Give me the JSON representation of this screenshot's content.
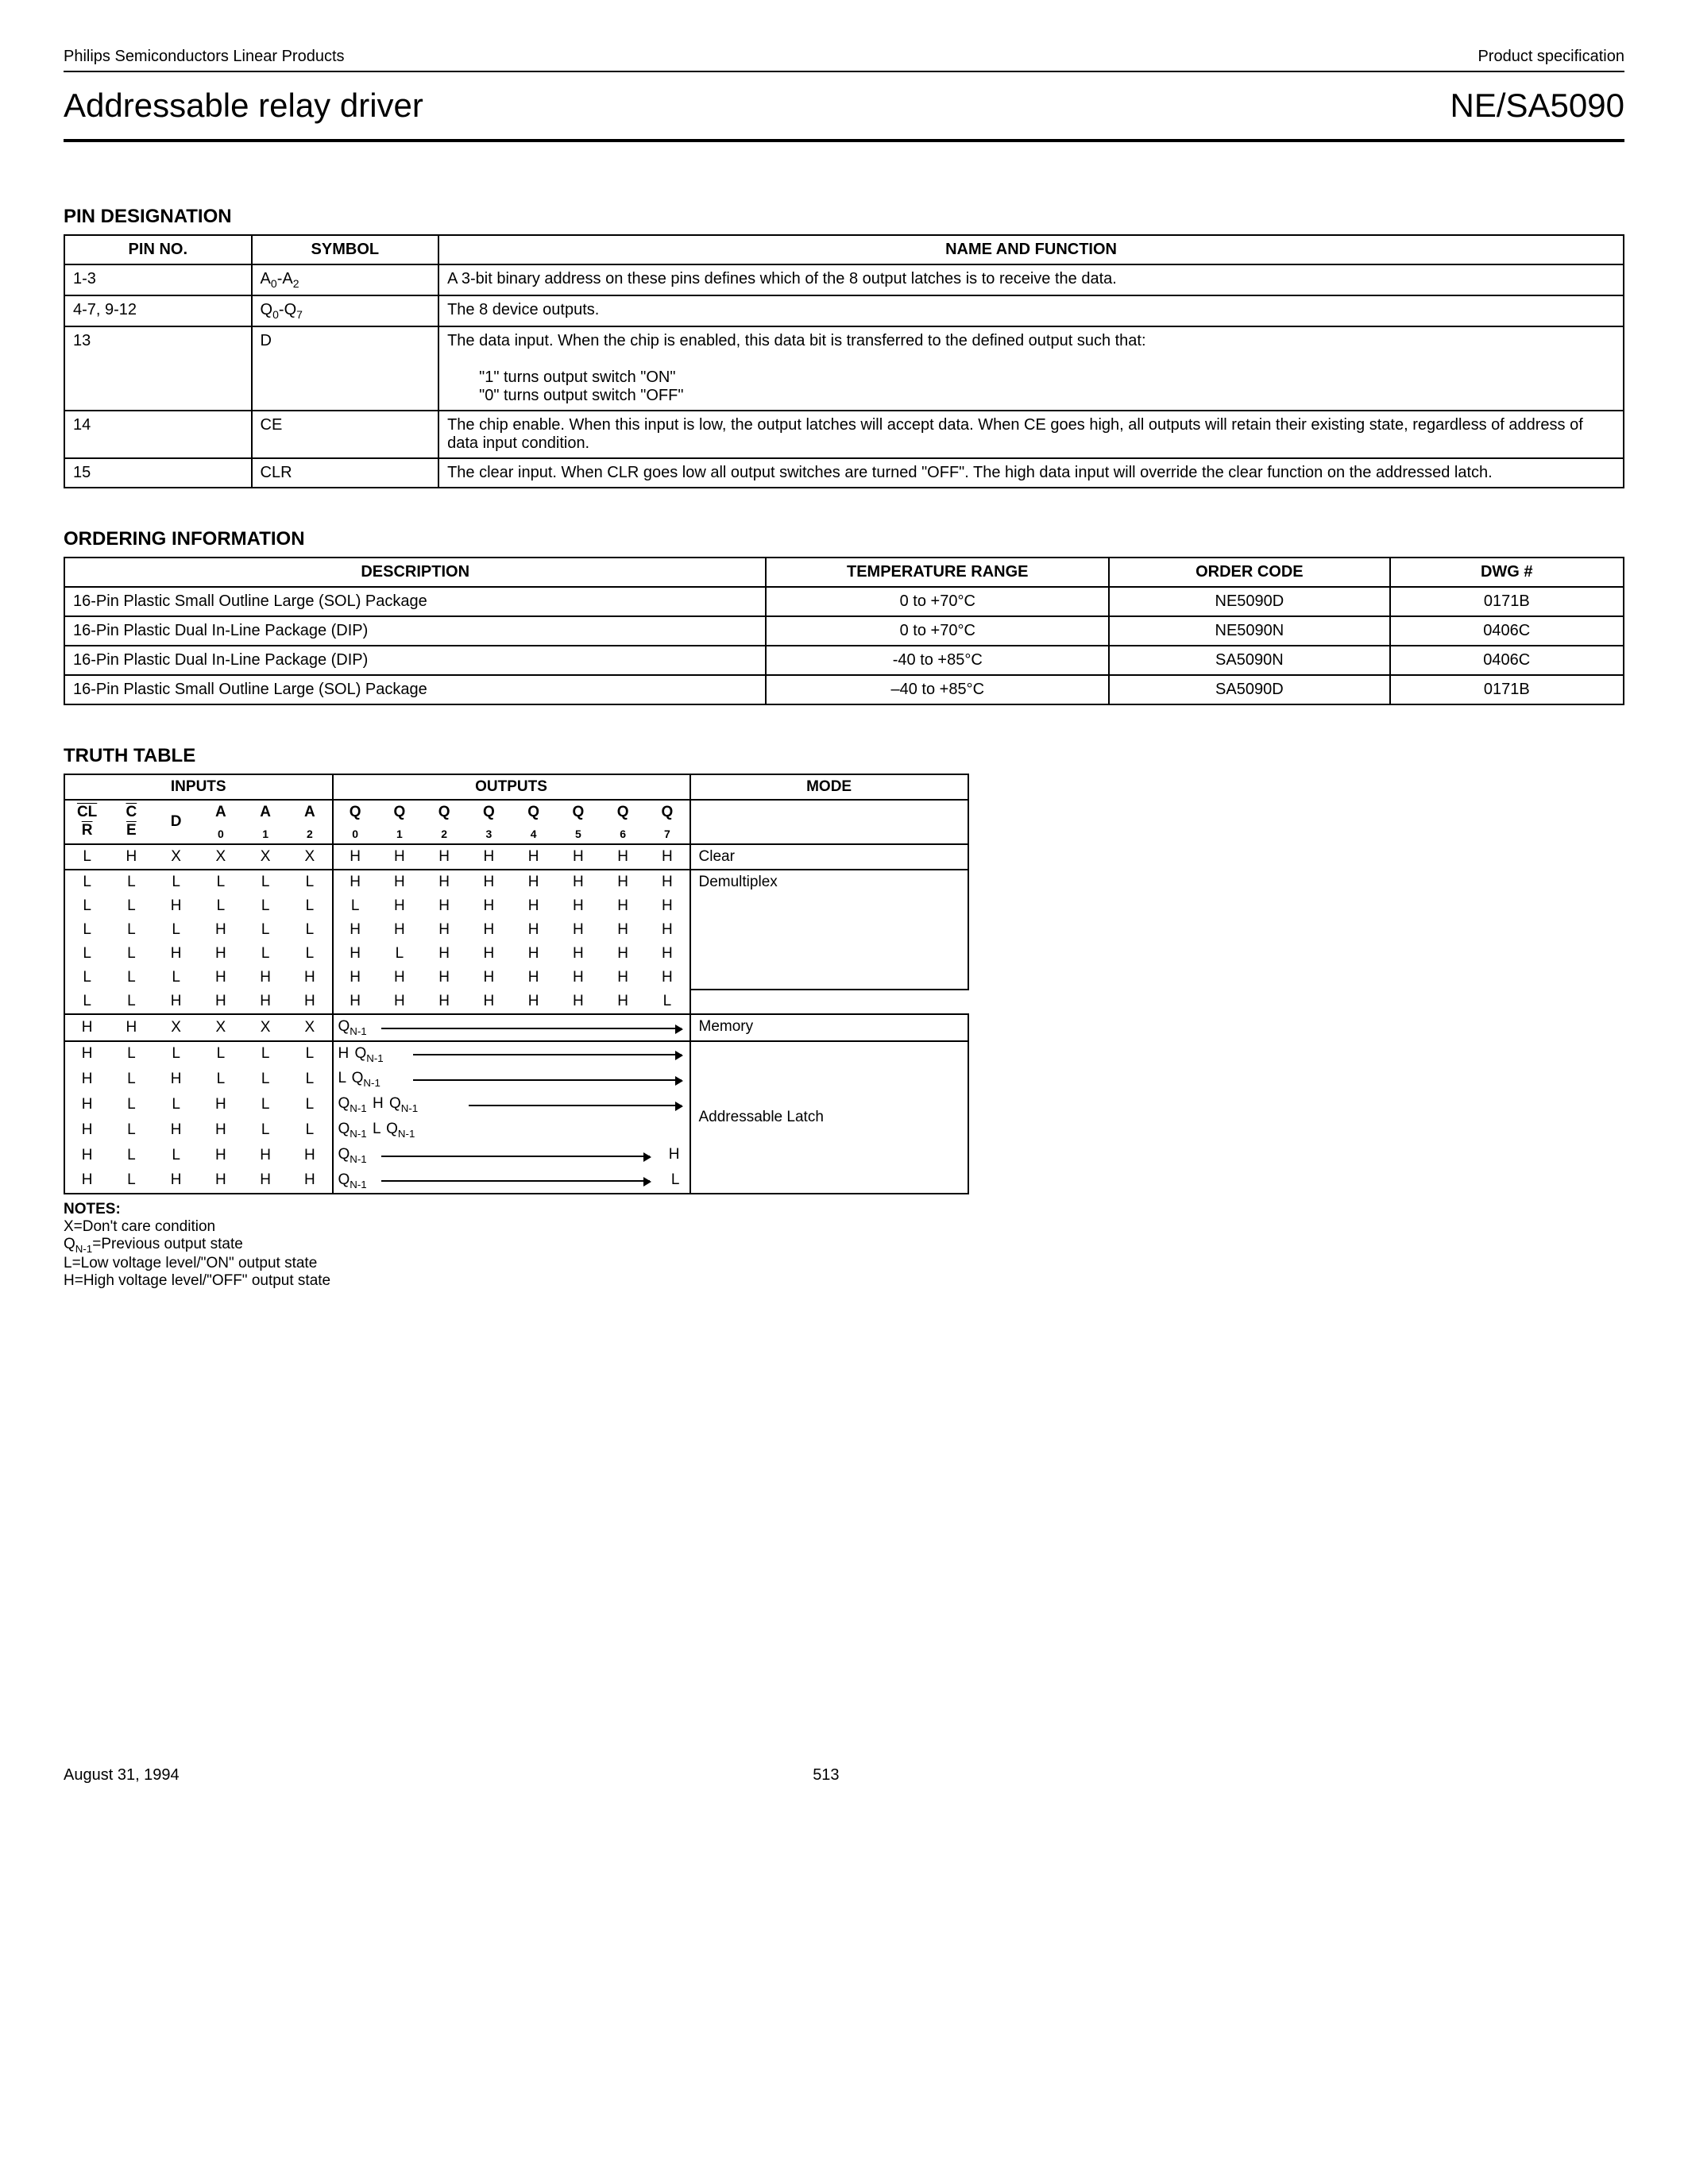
{
  "header": {
    "company_line": "Philips Semiconductors Linear Products",
    "spec_line": "Product specification",
    "title": "Addressable relay driver",
    "part": "NE/SA5090"
  },
  "pin_designation": {
    "heading": "PIN DESIGNATION",
    "columns": [
      "PIN NO.",
      "SYMBOL",
      "NAME AND FUNCTION"
    ],
    "rows": [
      {
        "pin": "1-3",
        "symbol_html": "A<sub>0</sub>-A<sub>2</sub>",
        "func": "A 3-bit binary address on these pins defines which of the 8 output latches is to receive the data."
      },
      {
        "pin": "4-7, 9-12",
        "symbol_html": "Q<sub>0</sub>-Q<sub>7</sub>",
        "func": "The 8 device outputs."
      },
      {
        "pin": "13",
        "symbol_html": "D",
        "func": "The data input. When the chip is enabled, this data bit is transferred to the defined output such that:",
        "extra": [
          "\"1\" turns output switch \"ON\"",
          "\"0\" turns output switch \"OFF\""
        ]
      },
      {
        "pin": "14",
        "symbol_html": "CE",
        "func": "The chip enable. When this input is low, the output latches will accept data. When CE goes high, all outputs will retain their existing state, regardless of address of data input condition."
      },
      {
        "pin": "15",
        "symbol_html": "CLR",
        "func": "The clear input. When CLR goes low all output switches are turned \"OFF\". The high data input will override the clear function on the addressed latch."
      }
    ]
  },
  "ordering": {
    "heading": "ORDERING INFORMATION",
    "columns": [
      "DESCRIPTION",
      "TEMPERATURE RANGE",
      "ORDER CODE",
      "DWG #"
    ],
    "rows": [
      [
        "16-Pin Plastic Small Outline Large (SOL) Package",
        "0 to +70°C",
        "NE5090D",
        "0171B"
      ],
      [
        "16-Pin Plastic Dual In-Line Package (DIP)",
        "0 to +70°C",
        "NE5090N",
        "0406C"
      ],
      [
        "16-Pin Plastic Dual In-Line Package (DIP)",
        "-40 to +85°C",
        "SA5090N",
        "0406C"
      ],
      [
        "16-Pin Plastic Small Outline Large (SOL) Package",
        "–40 to +85°C",
        "SA5090D",
        "0171B"
      ]
    ]
  },
  "truth": {
    "heading": "TRUTH TABLE",
    "group_headers": [
      "INPUTS",
      "OUTPUTS",
      "MODE"
    ],
    "input_headers_html": [
      "<span class='ol'>CL<br>R</span>",
      "<span class='ol'>C<br>E</span>",
      "D",
      "A<br><span class='sub'>0</span>",
      "A<br><span class='sub'>1</span>",
      "A<br><span class='sub'>2</span>"
    ],
    "output_headers_html": [
      "Q<br><span class='sub'>0</span>",
      "Q<br><span class='sub'>1</span>",
      "Q<br><span class='sub'>2</span>",
      "Q<br><span class='sub'>3</span>",
      "Q<br><span class='sub'>4</span>",
      "Q<br><span class='sub'>5</span>",
      "Q<br><span class='sub'>6</span>",
      "Q<br><span class='sub'>7</span>"
    ],
    "simple_rows": [
      {
        "in": [
          "L",
          "H",
          "X",
          "X",
          "X",
          "X"
        ],
        "out": [
          "H",
          "H",
          "H",
          "H",
          "H",
          "H",
          "H",
          "H"
        ],
        "mode": "Clear",
        "mode_rows": 1,
        "top": true
      },
      {
        "in": [
          "L",
          "L",
          "L",
          "L",
          "L",
          "L"
        ],
        "out": [
          "H",
          "H",
          "H",
          "H",
          "H",
          "H",
          "H",
          "H"
        ],
        "mode": "",
        "mode_rows": 5,
        "top": true
      },
      {
        "in": [
          "L",
          "L",
          "H",
          "L",
          "L",
          "L"
        ],
        "out": [
          "L",
          "H",
          "H",
          "H",
          "H",
          "H",
          "H",
          "H"
        ]
      },
      {
        "in": [
          "L",
          "L",
          "L",
          "H",
          "L",
          "L"
        ],
        "out": [
          "H",
          "H",
          "H",
          "H",
          "H",
          "H",
          "H",
          "H"
        ],
        "mode": "Demultiplex"
      },
      {
        "in": [
          "L",
          "L",
          "H",
          "H",
          "L",
          "L"
        ],
        "out": [
          "H",
          "L",
          "H",
          "H",
          "H",
          "H",
          "H",
          "H"
        ]
      },
      {
        "in": [
          "L",
          "L",
          "L",
          "H",
          "H",
          "H"
        ],
        "out": [
          "H",
          "H",
          "H",
          "H",
          "H",
          "H",
          "H",
          "H"
        ]
      },
      {
        "in": [
          "L",
          "L",
          "H",
          "H",
          "H",
          "H"
        ],
        "out": [
          "H",
          "H",
          "H",
          "H",
          "H",
          "H",
          "H",
          "L"
        ],
        "bottom": true
      }
    ],
    "memory_row": {
      "in": [
        "H",
        "H",
        "X",
        "X",
        "X",
        "X"
      ],
      "q_label": "Q<sub>N-1</sub>",
      "mode": "Memory"
    },
    "latch_rows": [
      {
        "in": [
          "H",
          "L",
          "L",
          "L",
          "L",
          "L"
        ],
        "pre": [
          " H "
        ],
        "q_label": "Q<sub>N-1</sub>",
        "arrow_to": 8
      },
      {
        "in": [
          "H",
          "L",
          "H",
          "L",
          "L",
          "L"
        ],
        "pre": [
          " L "
        ],
        "q_label": "Q<sub>N-1</sub>",
        "arrow_to": 8
      },
      {
        "in": [
          "H",
          "L",
          "L",
          "H",
          "L",
          "L"
        ],
        "pre": [],
        "q_label": "Q<sub>N-1</sub>",
        "mid": " H ",
        "q2": "Q<sub>N-1</sub>",
        "arrow_to": 8,
        "mode": "Addressable Latch"
      },
      {
        "in": [
          "H",
          "L",
          "H",
          "H",
          "L",
          "L"
        ],
        "pre": [],
        "q_label": "Q<sub>N-1</sub>",
        "mid": " L ",
        "q2": "Q<sub>N-1</sub>",
        "arrow_to": 0
      },
      {
        "in": [
          "H",
          "L",
          "L",
          "H",
          "H",
          "H"
        ],
        "pre": [],
        "q_label": "Q<sub>N-1</sub>",
        "arrow_to": 7,
        "tail": "H"
      },
      {
        "in": [
          "H",
          "L",
          "H",
          "H",
          "H",
          "H"
        ],
        "pre": [],
        "q_label": "Q<sub>N-1</sub>",
        "arrow_to": 7,
        "tail": "L",
        "bottom": true
      }
    ],
    "notes": {
      "hdr": "NOTES:",
      "lines": [
        "X=Don't care condition",
        "Q<sub>N-1</sub>=Previous output state",
        "L=Low voltage level/\"ON\" output state",
        "H=High voltage level/\"OFF\" output state"
      ]
    }
  },
  "footer": {
    "date": "August 31, 1994",
    "page": "513"
  }
}
